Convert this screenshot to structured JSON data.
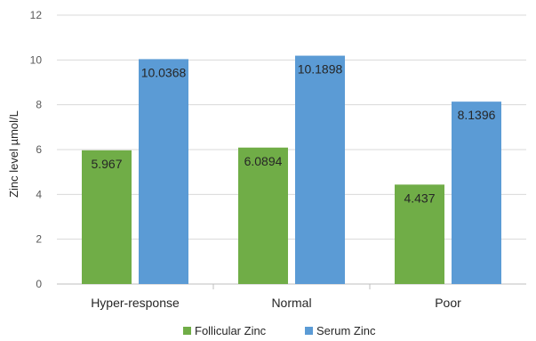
{
  "chart_data": {
    "type": "bar",
    "title": "",
    "xlabel": "",
    "ylabel": "Zinc level µmol/L",
    "ylim": [
      0,
      12
    ],
    "yticks": [
      "0",
      "2",
      "4",
      "6",
      "8",
      "10",
      "12"
    ],
    "grid": true,
    "legend_position": "bottom",
    "categories": [
      "Hyper-response",
      "Normal",
      "Poor"
    ],
    "series": [
      {
        "name": "Follicular Zinc",
        "color": "#70ad47",
        "values": [
          5.967,
          6.0894,
          4.437
        ],
        "labels": [
          "5.967",
          "6.0894",
          "4.437"
        ]
      },
      {
        "name": "Serum Zinc",
        "color": "#5b9bd5",
        "values": [
          10.0368,
          10.1898,
          8.1396
        ],
        "labels": [
          "10.0368",
          "10.1898",
          "8.1396"
        ]
      }
    ]
  }
}
